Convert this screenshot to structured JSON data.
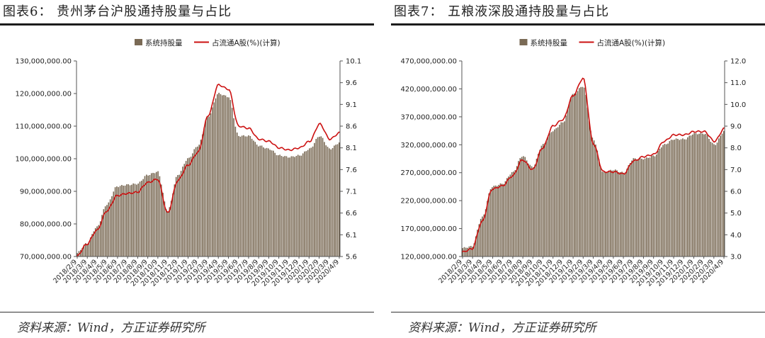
{
  "panels": [
    {
      "title": "图表6：  贵州茅台沪股通持股量与占比",
      "source": "资料来源：Wind，方正证券研究所",
      "chart_data": {
        "type": "bar+line",
        "legend": {
          "position": "top-center",
          "bar_label": "系统持股量",
          "line_label": "占流通A股(%)(计算)"
        },
        "colors": {
          "bar": "#7a6a55",
          "line": "#cc1111"
        },
        "grid": false,
        "y_left": {
          "min": 70000000,
          "max": 130000000,
          "step": 10000000,
          "ticks": [
            "70,000,000.00",
            "80,000,000.00",
            "90,000,000.00",
            "100,000,000.00",
            "110,000,000.00",
            "120,000,000.00",
            "130,000,000.00"
          ]
        },
        "y_right": {
          "min": 5.6,
          "max": 10.1,
          "step": 0.5,
          "ticks": [
            "5.6",
            "6.1",
            "6.6",
            "7.1",
            "7.6",
            "8.1",
            "8.6",
            "9.1",
            "9.6",
            "10.1"
          ]
        },
        "x_tick_labels": [
          "2018/2/9",
          "2018/3/9",
          "2018/4/9",
          "2018/5/9",
          "2018/6/9",
          "2018/7/9",
          "2018/8/9",
          "2018/9/9",
          "2018/10/9",
          "2018/11/9",
          "2018/12/9",
          "2019/1/9",
          "2019/2/9",
          "2019/3/9",
          "2019/4/9",
          "2019/5/9",
          "2019/6/9",
          "2019/7/9",
          "2019/8/9",
          "2019/9/9",
          "2019/10/9",
          "2019/11/9",
          "2019/12/9",
          "2020/1/9",
          "2020/2/9",
          "2020/3/9",
          "2020/4/9"
        ],
        "holdings_by_month": [
          71000000,
          74000000,
          79000000,
          86000000,
          91500000,
          92000000,
          92300000,
          95000000,
          96000000,
          84000000,
          95000000,
          100000000,
          104000000,
          113000000,
          120000000,
          119000000,
          107000000,
          107000000,
          104000000,
          103000000,
          101000000,
          100500000,
          101000000,
          103000000,
          107000000,
          103000000,
          105000000
        ],
        "pct_by_month": [
          5.6,
          5.88,
          6.2,
          6.65,
          7.0,
          7.05,
          7.08,
          7.3,
          7.38,
          6.6,
          7.35,
          7.7,
          8.0,
          8.85,
          9.55,
          9.45,
          8.6,
          8.55,
          8.3,
          8.25,
          8.1,
          8.05,
          8.1,
          8.25,
          8.65,
          8.3,
          8.45
        ]
      }
    },
    {
      "title": "图表7：  五粮液深股通持股量与占比",
      "source": "资料来源：Wind，方正证券研究所",
      "chart_data": {
        "type": "bar+line",
        "legend": {
          "position": "top-center",
          "bar_label": "系统持股量",
          "line_label": "占流通A股(%)(计算)"
        },
        "colors": {
          "bar": "#7a6a55",
          "line": "#cc1111"
        },
        "grid": false,
        "y_left": {
          "min": 120000000,
          "max": 470000000,
          "step": 50000000,
          "ticks": [
            "120,000,000.00",
            "170,000,000.00",
            "220,000,000.00",
            "270,000,000.00",
            "320,000,000.00",
            "370,000,000.00",
            "420,000,000.00",
            "470,000,000.00"
          ]
        },
        "y_right": {
          "min": 3.0,
          "max": 12.0,
          "step": 1.0,
          "ticks": [
            "3.0",
            "4.0",
            "5.0",
            "6.0",
            "7.0",
            "8.0",
            "9.0",
            "10.0",
            "11.0",
            "12.0"
          ]
        },
        "x_tick_labels": [
          "2018/2/9",
          "2018/3/9",
          "2018/4/9",
          "2018/5/9",
          "2018/6/9",
          "2018/7/9",
          "2018/8/9",
          "2018/9/9",
          "2018/10/9",
          "2018/11/9",
          "2018/12/9",
          "2019/1/9",
          "2019/2/9",
          "2019/3/9",
          "2019/4/9",
          "2019/5/9",
          "2019/6/9",
          "2019/7/9",
          "2019/8/9",
          "2019/9/9",
          "2019/10/9",
          "2019/11/9",
          "2019/12/9",
          "2020/1/9",
          "2020/2/9",
          "2020/3/9",
          "2020/4/9"
        ],
        "holdings_by_month": [
          135000000,
          138000000,
          190000000,
          245000000,
          250000000,
          270000000,
          300000000,
          280000000,
          320000000,
          345000000,
          360000000,
          410000000,
          425000000,
          330000000,
          270000000,
          275000000,
          270000000,
          295000000,
          295000000,
          300000000,
          320000000,
          330000000,
          330000000,
          340000000,
          340000000,
          320000000,
          345000000
        ],
        "pct_by_month": [
          3.2,
          3.35,
          4.6,
          6.1,
          6.25,
          6.7,
          7.45,
          7.0,
          8.0,
          9.0,
          9.3,
          10.4,
          11.2,
          8.2,
          6.9,
          6.9,
          6.8,
          7.4,
          7.6,
          7.7,
          8.3,
          8.6,
          8.6,
          8.75,
          8.75,
          8.3,
          8.9
        ]
      }
    }
  ]
}
